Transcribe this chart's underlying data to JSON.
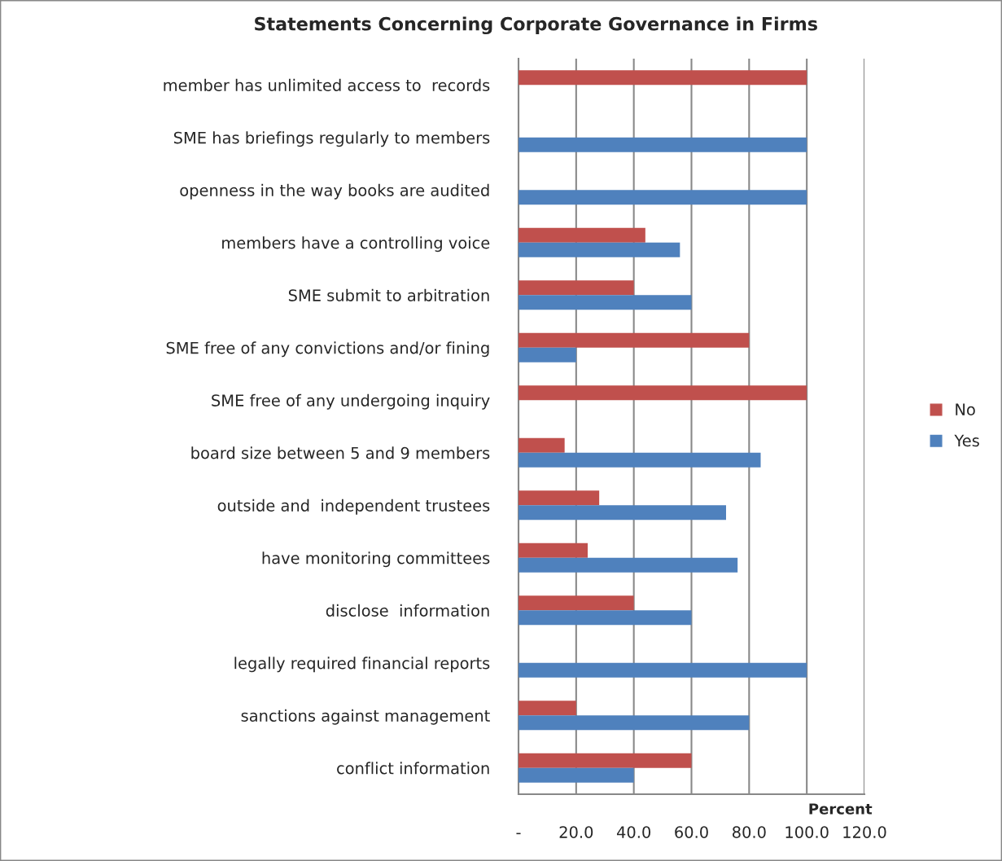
{
  "chart_data": {
    "type": "bar",
    "orientation": "horizontal",
    "title": "Statements Concerning Corporate Governance in Firms",
    "xlabel": "Percent",
    "categories": [
      "member has unlimited access to  records",
      "SME has briefings regularly to members",
      "openness in the way books are audited",
      "members have a controlling voice",
      "SME submit to arbitration",
      "SME free of any convictions and/or fining",
      "SME free of any undergoing inquiry",
      "board size between 5 and 9 members",
      "outside and  independent trustees",
      "have monitoring committees",
      "disclose  information",
      "legally required financial reports",
      "sanctions against management",
      "conflict information"
    ],
    "series": [
      {
        "name": "No",
        "color": "#c0504d",
        "values": [
          100,
          null,
          null,
          44,
          40,
          80,
          100,
          16,
          28,
          24,
          40,
          null,
          20,
          60
        ]
      },
      {
        "name": "Yes",
        "color": "#4f81bd",
        "values": [
          null,
          100,
          100,
          56,
          60,
          20,
          null,
          84,
          72,
          76,
          60,
          100,
          80,
          40
        ]
      }
    ],
    "xlim": [
      0,
      120
    ],
    "xticks": [
      {
        "value": 0,
        "label": "-"
      },
      {
        "value": 20,
        "label": "20.0"
      },
      {
        "value": 40,
        "label": "40.0"
      },
      {
        "value": 60,
        "label": "60.0"
      },
      {
        "value": 80,
        "label": "80.0"
      },
      {
        "value": 100,
        "label": "100.0"
      },
      {
        "value": 120,
        "label": "120.0"
      }
    ],
    "grid": "x",
    "legend": "right"
  }
}
